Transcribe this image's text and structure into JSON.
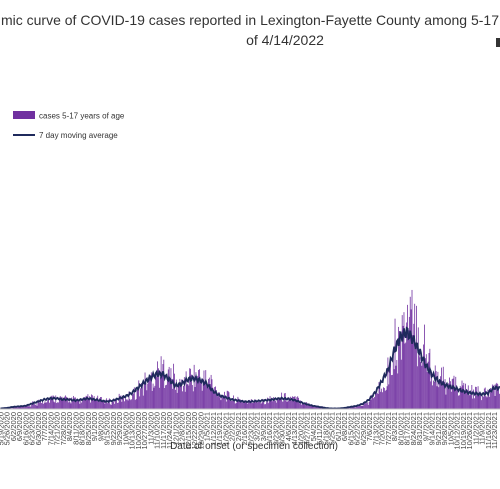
{
  "chart_data": {
    "type": "bar",
    "title_line1": "mic curve of COVID-19 cases reported in Lexington-Fayette County among 5-17",
    "title_line2": "of 4/14/2022",
    "xlabel": "Date of onset (or specimen collection)",
    "ylabel": "",
    "legend": {
      "placement": "top-left"
    },
    "grid": false,
    "colors": {
      "bars": "#7030A0",
      "line": "#1F2A5C"
    },
    "x_tick_labels": [
      "5/19/2020",
      "5/26/2020",
      "6/2/2020",
      "6/9/2020",
      "6/16/2020",
      "6/23/2020",
      "6/30/2020",
      "7/7/2020",
      "7/14/2020",
      "7/21/2020",
      "7/28/2020",
      "8/4/2020",
      "8/11/2020",
      "8/18/2020",
      "8/25/2020",
      "9/1/2020",
      "9/8/2020",
      "9/15/2020",
      "9/22/2020",
      "9/29/2020",
      "10/6/2020",
      "10/13/2020",
      "10/20/2020",
      "10/27/2020",
      "11/3/2020",
      "11/10/2020",
      "11/17/2020",
      "11/24/2020",
      "12/1/2020",
      "12/8/2020",
      "12/15/2020",
      "12/22/2020",
      "12/29/2020",
      "1/5/2021",
      "1/12/2021",
      "1/19/2021",
      "1/26/2021",
      "2/2/2021",
      "2/9/2021",
      "2/16/2021",
      "2/23/2021",
      "3/2/2021",
      "3/9/2021",
      "3/16/2021",
      "3/23/2021",
      "3/30/2021",
      "4/6/2021",
      "4/13/2021",
      "4/20/2021",
      "4/27/2021",
      "5/4/2021",
      "5/11/2021",
      "5/18/2021",
      "5/25/2021",
      "6/1/2021",
      "6/8/2021",
      "6/15/2021",
      "6/22/2021",
      "6/29/2021",
      "7/6/2021",
      "7/13/2021",
      "7/20/2021",
      "7/27/2021",
      "8/3/2021",
      "8/10/2021",
      "8/17/2021",
      "8/24/2021",
      "8/31/2021",
      "9/7/2021",
      "9/14/2021",
      "9/21/2021",
      "9/28/2021",
      "10/5/2021",
      "10/12/2021",
      "10/19/2021",
      "10/26/2021",
      "11/2/2021",
      "11/9/2021",
      "11/16/2021",
      "11/23/2021"
    ],
    "series": [
      {
        "name": "cases 5-17 years of age",
        "kind": "bar",
        "weekly_values": [
          0.5,
          1,
          2,
          2.5,
          3,
          5,
          7,
          9,
          10,
          10,
          9,
          9,
          8,
          9,
          10,
          9,
          8,
          7,
          8,
          10,
          12,
          15,
          20,
          25,
          30,
          35,
          36,
          30,
          22,
          25,
          30,
          31,
          28,
          26,
          18,
          14,
          12,
          9,
          8,
          7,
          7,
          8,
          8,
          9,
          10,
          11,
          10,
          9,
          7,
          5,
          3,
          2,
          1,
          0.5,
          0.5,
          1,
          2,
          3,
          5,
          10,
          18,
          28,
          40,
          60,
          75,
          80,
          72,
          60,
          45,
          35,
          28,
          24,
          22,
          20,
          18,
          16,
          15,
          14,
          16,
          22
        ]
      },
      {
        "name": "7 day moving average",
        "kind": "line",
        "weekly_values": [
          0.5,
          1,
          2,
          2.5,
          3,
          5,
          7,
          9,
          10,
          10,
          9,
          9,
          8,
          9,
          10,
          9,
          8,
          7,
          8,
          10,
          12,
          15,
          20,
          25,
          30,
          33,
          33,
          28,
          22,
          24,
          28,
          29,
          27,
          24,
          17,
          13,
          11,
          9,
          8,
          7,
          7,
          7.5,
          8,
          8.5,
          9.5,
          10,
          9.5,
          8.5,
          6.5,
          4.5,
          3,
          2,
          1,
          0.5,
          0.5,
          1,
          2,
          3,
          5,
          9,
          16,
          26,
          37,
          55,
          68,
          73,
          66,
          55,
          42,
          33,
          27,
          23,
          21,
          19,
          17,
          15.5,
          14.5,
          14,
          15,
          20
        ]
      }
    ],
    "ylim": [
      0,
      105
    ]
  }
}
